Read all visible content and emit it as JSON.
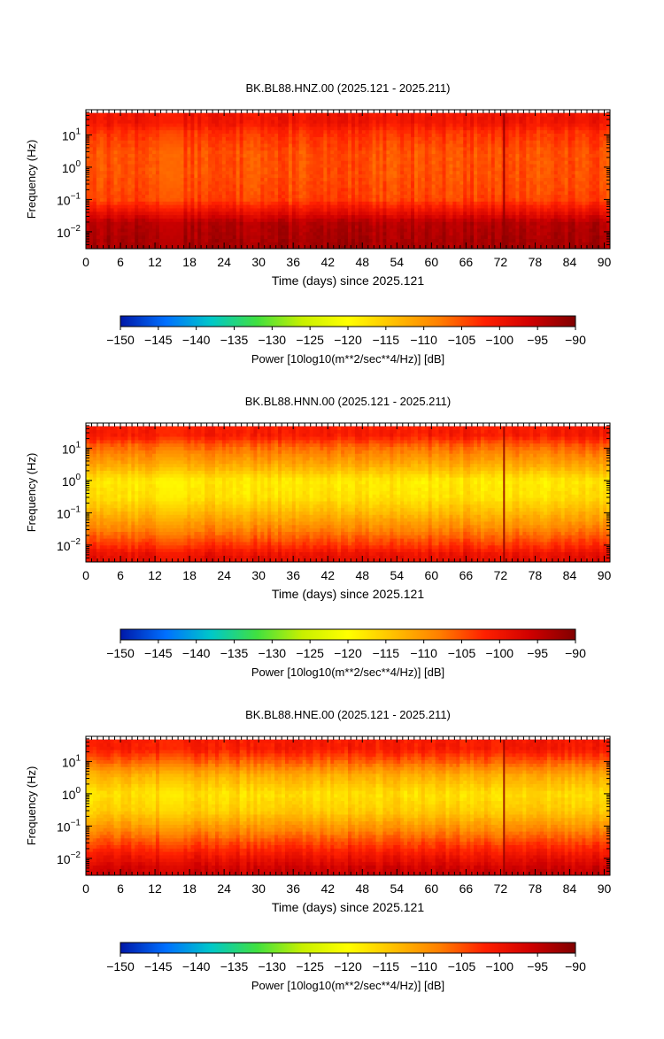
{
  "chart_data": [
    {
      "type": "heatmap",
      "title": "BK.BL88.HNZ.00 (2025.121 - 2025.211)",
      "xlabel": "Time (days) since 2025.121",
      "ylabel": "Frequency (Hz)",
      "xlim": [
        0,
        91
      ],
      "x_ticks": [
        "0",
        "6",
        "12",
        "18",
        "24",
        "30",
        "36",
        "42",
        "48",
        "54",
        "60",
        "66",
        "72",
        "78",
        "84",
        "90"
      ],
      "yscale": "log",
      "ylim": [
        0.003,
        60
      ],
      "y_ticks": [
        {
          "base": "10",
          "exp": "1",
          "value": 10
        },
        {
          "base": "10",
          "exp": "0",
          "value": 1
        },
        {
          "base": "10",
          "exp": "−1",
          "value": 0.1
        },
        {
          "base": "10",
          "exp": "−2",
          "value": 0.01
        }
      ],
      "colorbar": {
        "label": "Power [10log10(m**2/sec**4/Hz)] [dB]",
        "range": [
          -150,
          -90
        ],
        "ticks": [
          "−150",
          "−145",
          "−140",
          "−135",
          "−130",
          "−125",
          "−120",
          "−115",
          "−110",
          "−105",
          "−100",
          "−95",
          "−90"
        ],
        "colormap": [
          "#0018a8",
          "#0070ff",
          "#00c8c8",
          "#40e040",
          "#c8f000",
          "#ffff00",
          "#ffc000",
          "#ff8000",
          "#ff2000",
          "#d00000",
          "#800000"
        ]
      },
      "power_profile_db": [
        {
          "freq": 50,
          "db": -100
        },
        {
          "freq": 25,
          "db": -100
        },
        {
          "freq": 12,
          "db": -103
        },
        {
          "freq": 3,
          "db": -105
        },
        {
          "freq": 0.5,
          "db": -105
        },
        {
          "freq": 0.1,
          "db": -104
        },
        {
          "freq": 0.05,
          "db": -100
        },
        {
          "freq": 0.02,
          "db": -94
        },
        {
          "freq": 0.005,
          "db": -93
        }
      ],
      "data_gap_days": [
        12.8,
        17.0
      ],
      "transient_day": 72.6
    },
    {
      "type": "heatmap",
      "title": "BK.BL88.HNN.00 (2025.121 - 2025.211)",
      "xlabel": "Time (days) since 2025.121",
      "ylabel": "Frequency (Hz)",
      "xlim": [
        0,
        91
      ],
      "x_ticks": [
        "0",
        "6",
        "12",
        "18",
        "24",
        "30",
        "36",
        "42",
        "48",
        "54",
        "60",
        "66",
        "72",
        "78",
        "84",
        "90"
      ],
      "yscale": "log",
      "ylim": [
        0.003,
        60
      ],
      "y_ticks": [
        {
          "base": "10",
          "exp": "1",
          "value": 10
        },
        {
          "base": "10",
          "exp": "0",
          "value": 1
        },
        {
          "base": "10",
          "exp": "−1",
          "value": 0.1
        },
        {
          "base": "10",
          "exp": "−2",
          "value": 0.01
        }
      ],
      "colorbar": {
        "label": "Power [10log10(m**2/sec**4/Hz)] [dB]",
        "range": [
          -150,
          -90
        ],
        "ticks": [
          "−150",
          "−145",
          "−140",
          "−135",
          "−130",
          "−125",
          "−120",
          "−115",
          "−110",
          "−105",
          "−100",
          "−95",
          "−90"
        ],
        "colormap": [
          "#0018a8",
          "#0070ff",
          "#00c8c8",
          "#40e040",
          "#c8f000",
          "#ffff00",
          "#ffc000",
          "#ff8000",
          "#ff2000",
          "#d00000",
          "#800000"
        ]
      },
      "power_profile_db": [
        {
          "freq": 50,
          "db": -101
        },
        {
          "freq": 25,
          "db": -101
        },
        {
          "freq": 12,
          "db": -106
        },
        {
          "freq": 3,
          "db": -112
        },
        {
          "freq": 1,
          "db": -118
        },
        {
          "freq": 0.3,
          "db": -117
        },
        {
          "freq": 0.1,
          "db": -113
        },
        {
          "freq": 0.03,
          "db": -108
        },
        {
          "freq": 0.01,
          "db": -103
        },
        {
          "freq": 0.005,
          "db": -99
        }
      ],
      "data_gap_days": [
        12.8,
        17.0
      ],
      "transient_day": 72.6
    },
    {
      "type": "heatmap",
      "title": "BK.BL88.HNE.00 (2025.121 - 2025.211)",
      "xlabel": "Time (days) since 2025.121",
      "ylabel": "Frequency (Hz)",
      "xlim": [
        0,
        91
      ],
      "x_ticks": [
        "0",
        "6",
        "12",
        "18",
        "24",
        "30",
        "36",
        "42",
        "48",
        "54",
        "60",
        "66",
        "72",
        "78",
        "84",
        "90"
      ],
      "yscale": "log",
      "ylim": [
        0.003,
        60
      ],
      "y_ticks": [
        {
          "base": "10",
          "exp": "1",
          "value": 10
        },
        {
          "base": "10",
          "exp": "0",
          "value": 1
        },
        {
          "base": "10",
          "exp": "−1",
          "value": 0.1
        },
        {
          "base": "10",
          "exp": "−2",
          "value": 0.01
        }
      ],
      "colorbar": {
        "label": "Power [10log10(m**2/sec**4/Hz)] [dB]",
        "range": [
          -150,
          -90
        ],
        "ticks": [
          "−150",
          "−145",
          "−140",
          "−135",
          "−130",
          "−125",
          "−120",
          "−115",
          "−110",
          "−105",
          "−100",
          "−95",
          "−90"
        ],
        "colormap": [
          "#0018a8",
          "#0070ff",
          "#00c8c8",
          "#40e040",
          "#c8f000",
          "#ffff00",
          "#ffc000",
          "#ff8000",
          "#ff2000",
          "#d00000",
          "#800000"
        ]
      },
      "power_profile_db": [
        {
          "freq": 50,
          "db": -101
        },
        {
          "freq": 25,
          "db": -101
        },
        {
          "freq": 10,
          "db": -106
        },
        {
          "freq": 4,
          "db": -112
        },
        {
          "freq": 1,
          "db": -117
        },
        {
          "freq": 0.3,
          "db": -115
        },
        {
          "freq": 0.1,
          "db": -110
        },
        {
          "freq": 0.03,
          "db": -104
        },
        {
          "freq": 0.01,
          "db": -99
        },
        {
          "freq": 0.005,
          "db": -96
        }
      ],
      "data_gap_days": [
        12.8,
        17.0
      ],
      "transient_day": 72.6
    }
  ]
}
